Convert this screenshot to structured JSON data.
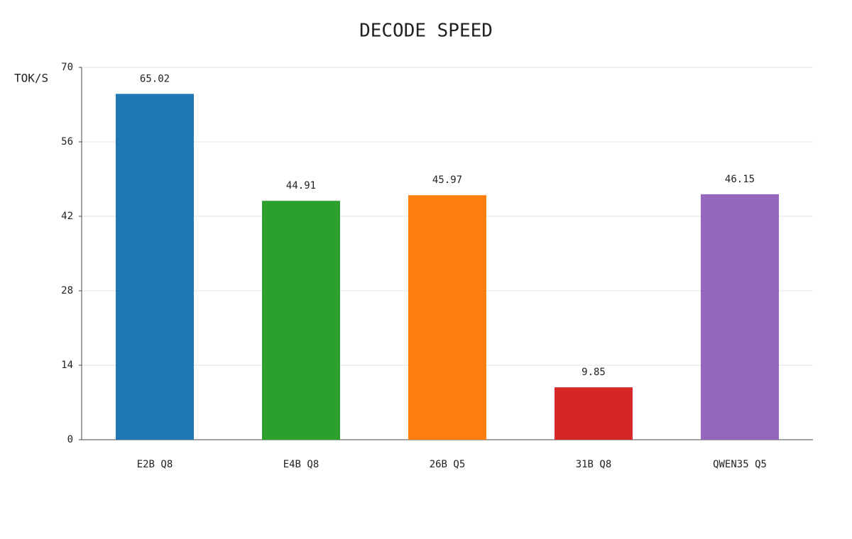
{
  "chart_data": {
    "type": "bar",
    "title": "DECODE SPEED",
    "y_label": "TOK/S",
    "categories": [
      "E2B Q8",
      "E4B Q8",
      "26B Q5",
      "31B Q8",
      "QWEN35 Q5"
    ],
    "values": [
      65.02,
      44.91,
      45.97,
      9.85,
      46.15
    ],
    "colors": [
      "#1f77b4",
      "#2ca02c",
      "#ff7f0e",
      "#d62728",
      "#9467bd"
    ],
    "ylim": [
      0,
      70
    ],
    "yticks": [
      0,
      14,
      28,
      42,
      56,
      70
    ],
    "grid": true
  }
}
